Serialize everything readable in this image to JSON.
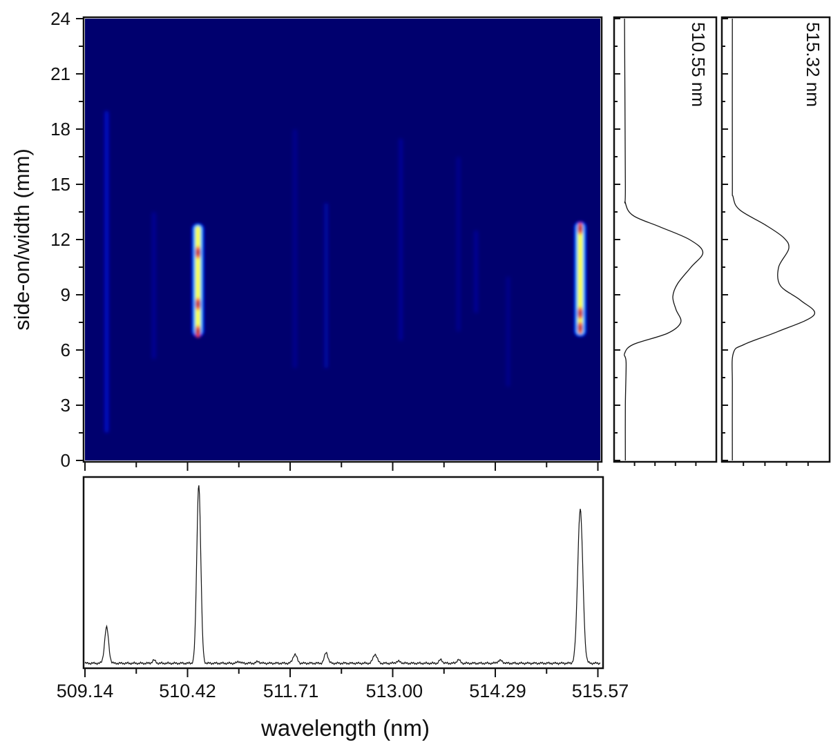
{
  "chart_data": [
    {
      "type": "heatmap",
      "title": "",
      "xlabel": "",
      "ylabel": "side-on/width (mm)",
      "xlim": [
        509.14,
        515.57
      ],
      "ylim": [
        0,
        24
      ],
      "y_ticks": [
        "0",
        "3",
        "6",
        "9",
        "12",
        "15",
        "18",
        "21",
        "24"
      ],
      "colormap": [
        "#00006e",
        "#0010ff",
        "#00c8ff",
        "#ffff30",
        "#ff4000",
        "#b00000"
      ],
      "background": "#00006e",
      "bright_lines": [
        {
          "wavelength": 510.55,
          "y_range": [
            6.8,
            12.8
          ],
          "peak_positions": [
            7.0,
            8.5,
            11.3
          ]
        },
        {
          "wavelength": 515.32,
          "y_range": [
            6.8,
            12.9
          ],
          "peak_positions": [
            7.2,
            8.0,
            12.6
          ]
        }
      ],
      "faint_lines": [
        {
          "wavelength": 509.41,
          "y_range": [
            1.5,
            19.0
          ],
          "intensity": 0.28
        },
        {
          "wavelength": 510.0,
          "y_range": [
            5.5,
            13.5
          ],
          "intensity": 0.12
        },
        {
          "wavelength": 511.76,
          "y_range": [
            5.0,
            18.0
          ],
          "intensity": 0.1
        },
        {
          "wavelength": 512.15,
          "y_range": [
            5.0,
            14.0
          ],
          "intensity": 0.16
        },
        {
          "wavelength": 513.08,
          "y_range": [
            6.5,
            17.5
          ],
          "intensity": 0.13
        },
        {
          "wavelength": 513.8,
          "y_range": [
            7.0,
            16.5
          ],
          "intensity": 0.1
        },
        {
          "wavelength": 514.02,
          "y_range": [
            8.0,
            12.5
          ],
          "intensity": 0.12
        },
        {
          "wavelength": 514.42,
          "y_range": [
            4.0,
            10.0
          ],
          "intensity": 0.09
        }
      ]
    },
    {
      "type": "line",
      "title": "",
      "xlabel": "wavelength (nm)",
      "ylabel": "",
      "xlim": [
        509.14,
        515.57
      ],
      "x_ticks": [
        "509.14",
        "510.42",
        "511.71",
        "513.00",
        "514.29",
        "515.57"
      ],
      "ylim": [
        0,
        1.05
      ],
      "baseline": 0.02,
      "peaks": [
        {
          "x": 509.41,
          "height": 0.2,
          "width": 0.025
        },
        {
          "x": 510.0,
          "height": 0.017,
          "width": 0.02
        },
        {
          "x": 510.56,
          "height": 1.0,
          "width": 0.025
        },
        {
          "x": 511.06,
          "height": 0.01,
          "width": 0.02
        },
        {
          "x": 511.3,
          "height": 0.01,
          "width": 0.02
        },
        {
          "x": 511.76,
          "height": 0.05,
          "width": 0.025
        },
        {
          "x": 512.15,
          "height": 0.06,
          "width": 0.022
        },
        {
          "x": 512.76,
          "height": 0.05,
          "width": 0.025
        },
        {
          "x": 513.05,
          "height": 0.01,
          "width": 0.03
        },
        {
          "x": 513.58,
          "height": 0.02,
          "width": 0.02
        },
        {
          "x": 513.8,
          "height": 0.02,
          "width": 0.02
        },
        {
          "x": 514.32,
          "height": 0.015,
          "width": 0.03
        },
        {
          "x": 515.32,
          "height": 0.86,
          "width": 0.032
        }
      ]
    },
    {
      "type": "line",
      "title": "510.55 nm",
      "orientation": "vertical-profile",
      "ylim": [
        0,
        24
      ],
      "xlim": [
        0,
        1.1
      ],
      "profile": [
        {
          "y": 0,
          "v": 0.02
        },
        {
          "y": 3,
          "v": 0.02
        },
        {
          "y": 5.3,
          "v": 0.03
        },
        {
          "y": 5.8,
          "v": 0.01
        },
        {
          "y": 6.3,
          "v": 0.12
        },
        {
          "y": 6.9,
          "v": 0.55
        },
        {
          "y": 7.5,
          "v": 0.72
        },
        {
          "y": 8.2,
          "v": 0.66
        },
        {
          "y": 8.9,
          "v": 0.62
        },
        {
          "y": 9.6,
          "v": 0.68
        },
        {
          "y": 10.5,
          "v": 0.85
        },
        {
          "y": 11.3,
          "v": 1.0
        },
        {
          "y": 12.0,
          "v": 0.83
        },
        {
          "y": 12.7,
          "v": 0.45
        },
        {
          "y": 13.3,
          "v": 0.12
        },
        {
          "y": 14.0,
          "v": 0.02
        },
        {
          "y": 15.0,
          "v": 0.02
        },
        {
          "y": 24,
          "v": 0.01
        }
      ]
    },
    {
      "type": "line",
      "title": "515.32 nm",
      "orientation": "vertical-profile",
      "ylim": [
        0,
        24
      ],
      "xlim": [
        0,
        1.1
      ],
      "profile": [
        {
          "y": 0,
          "v": 0.01
        },
        {
          "y": 4,
          "v": 0.01
        },
        {
          "y": 5.8,
          "v": 0.02
        },
        {
          "y": 6.3,
          "v": 0.15
        },
        {
          "y": 7.0,
          "v": 0.55
        },
        {
          "y": 7.9,
          "v": 0.98
        },
        {
          "y": 8.7,
          "v": 0.82
        },
        {
          "y": 9.5,
          "v": 0.58
        },
        {
          "y": 10.5,
          "v": 0.56
        },
        {
          "y": 11.5,
          "v": 0.68
        },
        {
          "y": 12.1,
          "v": 0.62
        },
        {
          "y": 12.8,
          "v": 0.4
        },
        {
          "y": 13.6,
          "v": 0.1
        },
        {
          "y": 14.3,
          "v": 0.02
        },
        {
          "y": 15.5,
          "v": 0.01
        },
        {
          "y": 24,
          "v": 0.01
        }
      ]
    }
  ]
}
